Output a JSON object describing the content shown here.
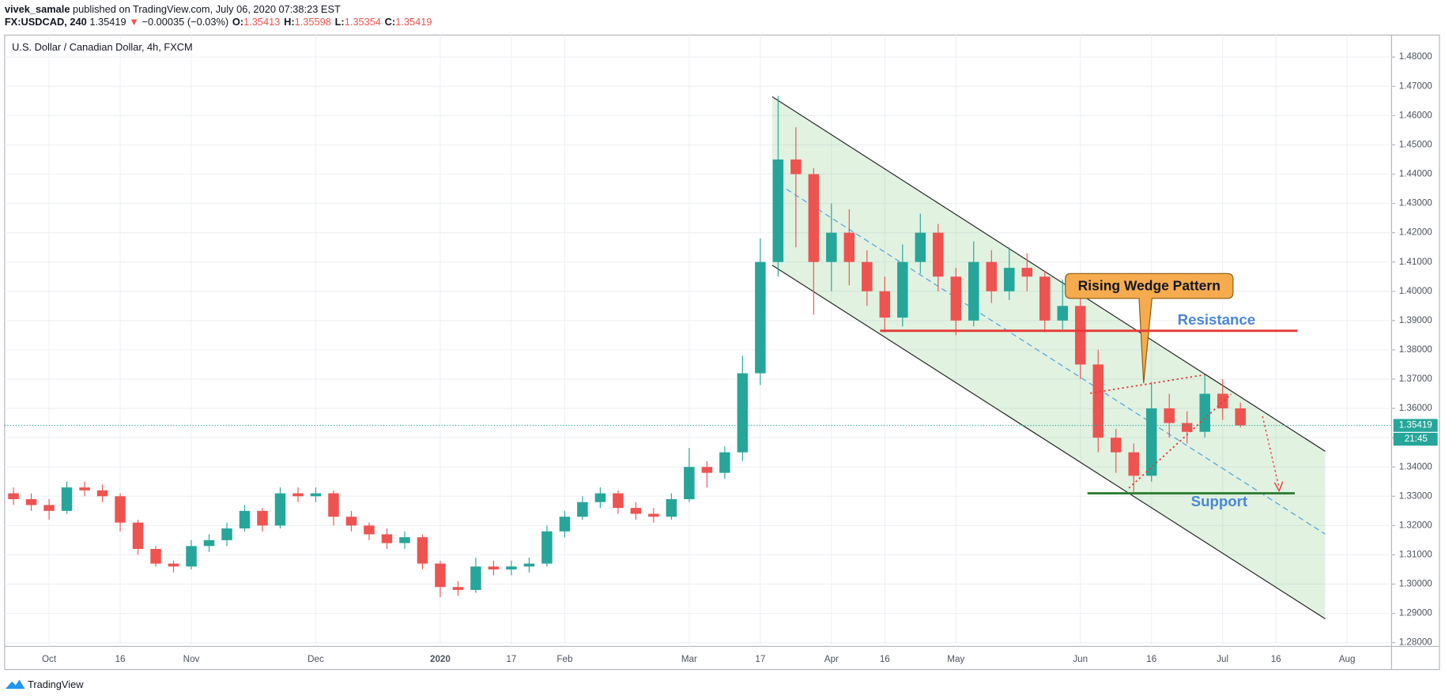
{
  "header": {
    "publisher": "vivek_samale",
    "published": "published on TradingView.com, July 06, 2020 07:38:23 EST",
    "symbol": "FX:USDCAD, 240",
    "last": "1.35419",
    "direction": "▼",
    "change": "−0.00035 (−0.03%)",
    "ohlc": [
      {
        "label": "O:",
        "value": "1.35413"
      },
      {
        "label": "H:",
        "value": "1.35598"
      },
      {
        "label": "L:",
        "value": "1.35354"
      },
      {
        "label": "C:",
        "value": "1.35419"
      }
    ]
  },
  "chart_data": {
    "type": "candlestick",
    "title": "U.S. Dollar / Canadian Dollar, 4h, FXCM",
    "categories": [
      null,
      null,
      "Oct",
      null,
      null,
      null,
      "16",
      null,
      null,
      null,
      "Nov",
      null,
      null,
      null,
      null,
      null,
      null,
      "Dec",
      null,
      null,
      null,
      null,
      null,
      null,
      "2020",
      null,
      null,
      null,
      "17",
      null,
      null,
      "Feb",
      null,
      null,
      null,
      null,
      null,
      null,
      "Mar",
      null,
      null,
      null,
      "17",
      null,
      null,
      null,
      "Apr",
      null,
      null,
      "16",
      null,
      null,
      null,
      "May",
      null,
      null,
      null,
      null,
      null,
      null,
      "Jun",
      null,
      null,
      null,
      "16",
      null,
      null,
      null,
      "Jul",
      null,
      null,
      "16",
      null,
      null,
      null,
      "Aug",
      null,
      null
    ],
    "open": [
      1.331,
      1.329,
      1.327,
      1.325,
      1.333,
      1.332,
      1.33,
      1.321,
      1.312,
      1.307,
      1.306,
      1.313,
      1.315,
      1.319,
      1.325,
      1.32,
      1.331,
      1.33,
      1.331,
      1.323,
      1.32,
      1.317,
      1.314,
      1.316,
      1.307,
      1.299,
      1.298,
      1.306,
      1.305,
      1.306,
      1.307,
      1.318,
      1.323,
      1.328,
      1.331,
      1.326,
      1.324,
      1.323,
      1.329,
      1.34,
      1.338,
      1.345,
      1.372,
      1.41,
      1.445,
      1.44,
      1.41,
      1.42,
      1.41,
      1.4,
      1.391,
      1.41,
      1.42,
      1.405,
      1.39,
      1.41,
      1.4,
      1.408,
      1.405,
      1.39,
      1.395,
      1.375,
      1.35,
      1.345,
      1.337,
      1.36,
      1.355,
      1.352,
      1.365,
      1.36,
      null,
      null,
      null,
      null,
      null,
      null,
      null,
      null
    ],
    "high": [
      1.333,
      1.331,
      1.329,
      1.335,
      1.335,
      1.334,
      1.331,
      1.322,
      1.313,
      1.308,
      1.315,
      1.317,
      1.321,
      1.327,
      1.326,
      1.333,
      1.333,
      1.333,
      1.332,
      1.325,
      1.321,
      1.319,
      1.318,
      1.317,
      1.308,
      1.301,
      1.309,
      1.308,
      1.308,
      1.309,
      1.32,
      1.325,
      1.33,
      1.333,
      1.332,
      1.328,
      1.326,
      1.331,
      1.3465,
      1.342,
      1.347,
      1.378,
      1.418,
      1.4667,
      1.456,
      1.442,
      1.43,
      1.428,
      1.414,
      1.405,
      1.416,
      1.4265,
      1.423,
      1.408,
      1.417,
      1.414,
      1.415,
      1.413,
      1.407,
      1.404,
      1.398,
      1.38,
      1.353,
      1.348,
      1.369,
      1.365,
      1.359,
      1.3715,
      1.37,
      1.362,
      null,
      null,
      null,
      null,
      null,
      null,
      null,
      null
    ],
    "low": [
      1.327,
      1.325,
      1.322,
      1.324,
      1.33,
      1.328,
      1.318,
      1.31,
      1.306,
      1.304,
      1.305,
      1.311,
      1.313,
      1.318,
      1.318,
      1.319,
      1.328,
      1.328,
      1.32,
      1.318,
      1.315,
      1.312,
      1.312,
      1.305,
      1.2955,
      1.296,
      1.297,
      1.303,
      1.303,
      1.304,
      1.306,
      1.316,
      1.322,
      1.326,
      1.324,
      1.322,
      1.321,
      1.322,
      1.328,
      1.333,
      1.336,
      1.342,
      1.368,
      1.405,
      1.415,
      1.392,
      1.4,
      1.402,
      1.395,
      1.386,
      1.388,
      1.406,
      1.4,
      1.385,
      1.388,
      1.396,
      1.397,
      1.4,
      1.386,
      1.387,
      1.37,
      1.345,
      1.338,
      1.3315,
      1.335,
      1.35,
      1.348,
      1.35,
      1.356,
      1.3535,
      null,
      null,
      null,
      null,
      null,
      null,
      null,
      null
    ],
    "close": [
      1.329,
      1.327,
      1.325,
      1.333,
      1.332,
      1.33,
      1.321,
      1.312,
      1.307,
      1.306,
      1.313,
      1.315,
      1.319,
      1.325,
      1.32,
      1.331,
      1.33,
      1.331,
      1.323,
      1.32,
      1.317,
      1.314,
      1.316,
      1.307,
      1.299,
      1.298,
      1.306,
      1.305,
      1.306,
      1.307,
      1.318,
      1.323,
      1.328,
      1.331,
      1.326,
      1.324,
      1.323,
      1.329,
      1.34,
      1.338,
      1.345,
      1.372,
      1.41,
      1.445,
      1.44,
      1.41,
      1.42,
      1.41,
      1.4,
      1.391,
      1.41,
      1.42,
      1.405,
      1.39,
      1.41,
      1.4,
      1.408,
      1.405,
      1.39,
      1.395,
      1.375,
      1.35,
      1.345,
      1.337,
      1.36,
      1.355,
      1.352,
      1.365,
      1.36,
      1.35419,
      null,
      null,
      null,
      null,
      null,
      null,
      null,
      null
    ],
    "up_color": "#26a69a",
    "down_color": "#ef5350",
    "ylim": [
      1.2787,
      1.4875
    ],
    "yticks": [
      {
        "value": 1.28,
        "label": "1.28000"
      },
      {
        "value": 1.29,
        "label": "1.29000"
      },
      {
        "value": 1.3,
        "label": "1.30000"
      },
      {
        "value": 1.31,
        "label": "1.31000"
      },
      {
        "value": 1.32,
        "label": "1.32000"
      },
      {
        "value": 1.33,
        "label": "1.33000"
      },
      {
        "value": 1.34,
        "label": "1.34000"
      },
      {
        "value": 1.35,
        "label": "1.35000"
      },
      {
        "value": 1.36,
        "label": "1.36000"
      },
      {
        "value": 1.37,
        "label": "1.37000"
      },
      {
        "value": 1.38,
        "label": "1.38000"
      },
      {
        "value": 1.39,
        "label": "1.39000"
      },
      {
        "value": 1.4,
        "label": "1.40000"
      },
      {
        "value": 1.41,
        "label": "1.41000"
      },
      {
        "value": 1.42,
        "label": "1.42000"
      },
      {
        "value": 1.43,
        "label": "1.43000"
      },
      {
        "value": 1.44,
        "label": "1.44000"
      },
      {
        "value": 1.45,
        "label": "1.45000"
      },
      {
        "value": 1.46,
        "label": "1.46000"
      },
      {
        "value": 1.47,
        "label": "1.47000"
      },
      {
        "value": 1.48,
        "label": "1.48000"
      }
    ],
    "grid": true,
    "last_price": 1.35419,
    "countdown": "21:45",
    "callout": "Rising Wedge Pattern",
    "resistance": {
      "text": "Resistance",
      "value": 1.3865,
      "color": "#e53935"
    },
    "support": {
      "text": "Support",
      "value": 1.331,
      "color": "#2e7d32"
    }
  },
  "footer": {
    "brand": "TradingView"
  }
}
